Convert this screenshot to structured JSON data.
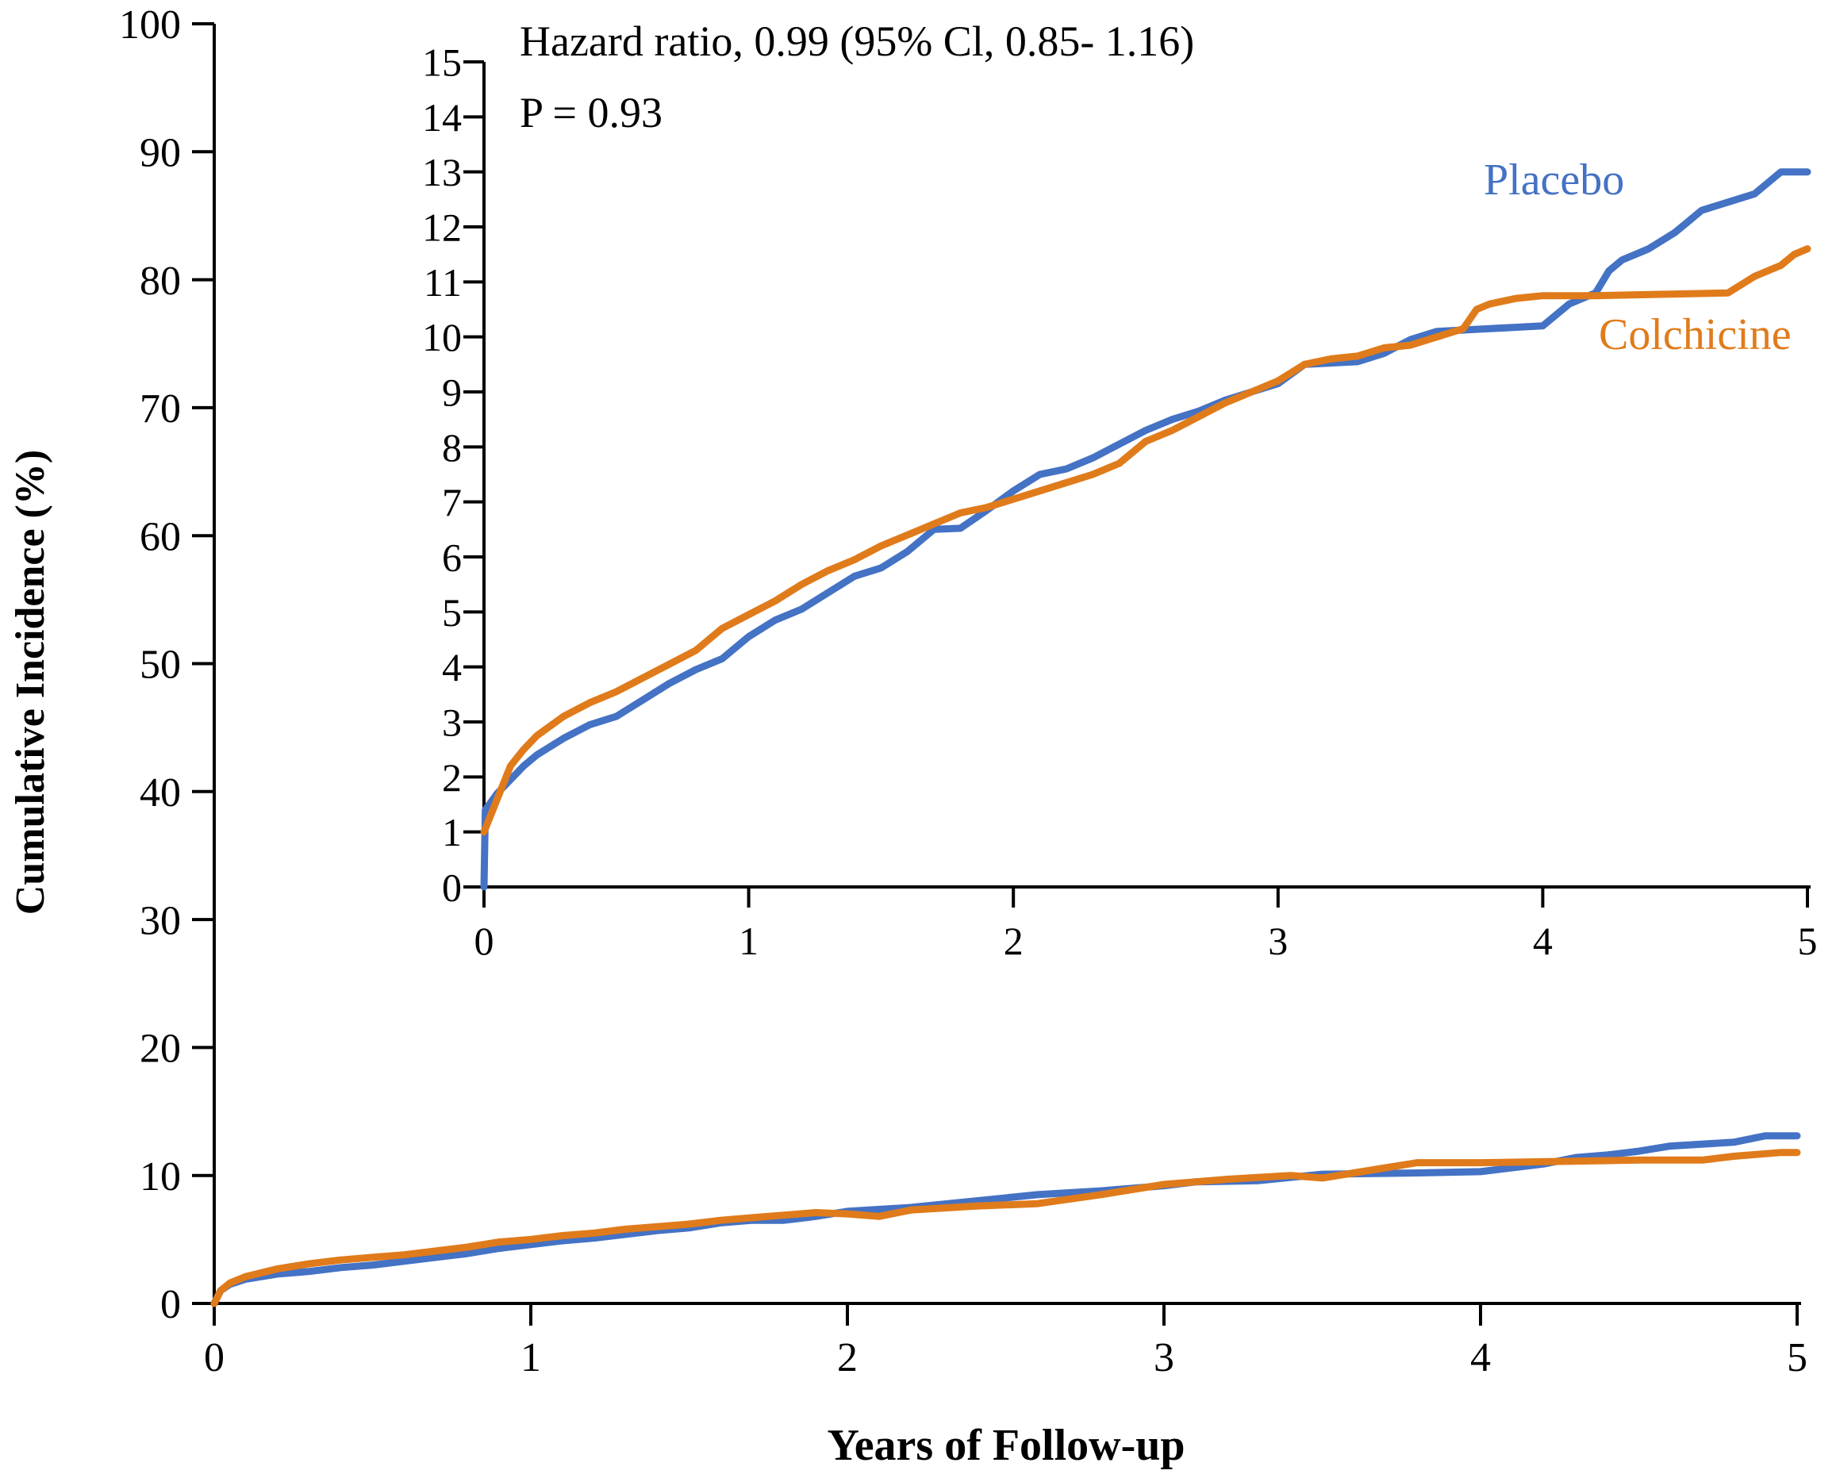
{
  "chart_data": [
    {
      "id": "main",
      "type": "line",
      "xlabel": "Years of Follow-up",
      "ylabel": "Cumulative Incidence (%)",
      "xlim": [
        0,
        5
      ],
      "ylim": [
        0,
        100
      ],
      "x_ticks": [
        "0",
        "1",
        "2",
        "3",
        "4",
        "5"
      ],
      "y_ticks": [
        "0",
        "10",
        "20",
        "30",
        "40",
        "50",
        "60",
        "70",
        "80",
        "90",
        "100"
      ],
      "grid": false,
      "series": [
        {
          "color": "#4472C4",
          "points": [
            [
              0,
              0
            ],
            [
              0.02,
              1.0
            ],
            [
              0.05,
              1.5
            ],
            [
              0.1,
              1.9
            ],
            [
              0.2,
              2.3
            ],
            [
              0.3,
              2.5
            ],
            [
              0.4,
              2.8
            ],
            [
              0.5,
              3.0
            ],
            [
              0.6,
              3.3
            ],
            [
              0.7,
              3.6
            ],
            [
              0.8,
              3.9
            ],
            [
              0.9,
              4.3
            ],
            [
              1.0,
              4.6
            ],
            [
              1.1,
              4.9
            ],
            [
              1.2,
              5.1
            ],
            [
              1.3,
              5.4
            ],
            [
              1.4,
              5.7
            ],
            [
              1.5,
              5.9
            ],
            [
              1.6,
              6.3
            ],
            [
              1.7,
              6.5
            ],
            [
              1.8,
              6.5
            ],
            [
              1.9,
              6.8
            ],
            [
              2.0,
              7.2
            ],
            [
              2.2,
              7.5
            ],
            [
              2.4,
              8.0
            ],
            [
              2.6,
              8.5
            ],
            [
              2.8,
              8.8
            ],
            [
              3.0,
              9.2
            ],
            [
              3.1,
              9.5
            ],
            [
              3.3,
              9.6
            ],
            [
              3.5,
              10.1
            ],
            [
              3.8,
              10.2
            ],
            [
              4.0,
              10.3
            ],
            [
              4.1,
              10.6
            ],
            [
              4.2,
              10.9
            ],
            [
              4.3,
              11.4
            ],
            [
              4.4,
              11.6
            ],
            [
              4.5,
              11.9
            ],
            [
              4.6,
              12.3
            ],
            [
              4.8,
              12.6
            ],
            [
              4.9,
              13.1
            ],
            [
              5.0,
              13.1
            ]
          ]
        },
        {
          "color": "#E07B1B",
          "points": [
            [
              0,
              0
            ],
            [
              0.02,
              1.0
            ],
            [
              0.05,
              1.6
            ],
            [
              0.1,
              2.1
            ],
            [
              0.2,
              2.7
            ],
            [
              0.3,
              3.1
            ],
            [
              0.4,
              3.4
            ],
            [
              0.5,
              3.6
            ],
            [
              0.6,
              3.8
            ],
            [
              0.7,
              4.1
            ],
            [
              0.8,
              4.4
            ],
            [
              0.9,
              4.8
            ],
            [
              1.0,
              5.0
            ],
            [
              1.1,
              5.3
            ],
            [
              1.2,
              5.5
            ],
            [
              1.3,
              5.8
            ],
            [
              1.4,
              6.0
            ],
            [
              1.5,
              6.2
            ],
            [
              1.6,
              6.5
            ],
            [
              1.7,
              6.7
            ],
            [
              1.8,
              6.9
            ],
            [
              1.9,
              7.1
            ],
            [
              2.0,
              7.0
            ],
            [
              2.1,
              6.8
            ],
            [
              2.2,
              7.3
            ],
            [
              2.4,
              7.6
            ],
            [
              2.6,
              7.8
            ],
            [
              2.8,
              8.5
            ],
            [
              3.0,
              9.3
            ],
            [
              3.2,
              9.7
            ],
            [
              3.4,
              10.0
            ],
            [
              3.5,
              9.8
            ],
            [
              3.6,
              10.2
            ],
            [
              3.7,
              10.6
            ],
            [
              3.8,
              11.0
            ],
            [
              4.0,
              11.0
            ],
            [
              4.5,
              11.2
            ],
            [
              4.7,
              11.2
            ],
            [
              4.8,
              11.5
            ],
            [
              4.95,
              11.8
            ],
            [
              5.0,
              11.8
            ]
          ]
        }
      ]
    },
    {
      "id": "inset",
      "type": "line",
      "xlim": [
        0,
        5
      ],
      "ylim": [
        0,
        15
      ],
      "x_ticks": [
        "0",
        "1",
        "2",
        "3",
        "4",
        "5"
      ],
      "y_ticks": [
        "0",
        "1",
        "2",
        "3",
        "4",
        "5",
        "6",
        "7",
        "8",
        "9",
        "10",
        "11",
        "12",
        "13",
        "14",
        "15"
      ],
      "grid": false,
      "annotations": [
        "Hazard ratio, 0.99 (95% Cl, 0.85- 1.16)",
        "P = 0.93"
      ],
      "series": [
        {
          "name": "Placebo",
          "color": "#4472C4",
          "points": [
            [
              0,
              0
            ],
            [
              0.005,
              1.4
            ],
            [
              0.05,
              1.7
            ],
            [
              0.1,
              1.95
            ],
            [
              0.15,
              2.2
            ],
            [
              0.2,
              2.4
            ],
            [
              0.3,
              2.7
            ],
            [
              0.4,
              2.95
            ],
            [
              0.5,
              3.1
            ],
            [
              0.6,
              3.4
            ],
            [
              0.7,
              3.7
            ],
            [
              0.8,
              3.95
            ],
            [
              0.9,
              4.15
            ],
            [
              1.0,
              4.55
            ],
            [
              1.1,
              4.85
            ],
            [
              1.2,
              5.05
            ],
            [
              1.3,
              5.35
            ],
            [
              1.4,
              5.65
            ],
            [
              1.5,
              5.8
            ],
            [
              1.6,
              6.1
            ],
            [
              1.7,
              6.5
            ],
            [
              1.8,
              6.52
            ],
            [
              1.9,
              6.85
            ],
            [
              2.0,
              7.2
            ],
            [
              2.1,
              7.5
            ],
            [
              2.2,
              7.6
            ],
            [
              2.3,
              7.8
            ],
            [
              2.4,
              8.05
            ],
            [
              2.5,
              8.3
            ],
            [
              2.6,
              8.5
            ],
            [
              2.7,
              8.65
            ],
            [
              2.8,
              8.85
            ],
            [
              2.9,
              9.0
            ],
            [
              3.0,
              9.15
            ],
            [
              3.1,
              9.5
            ],
            [
              3.3,
              9.55
            ],
            [
              3.4,
              9.7
            ],
            [
              3.5,
              9.95
            ],
            [
              3.6,
              10.1
            ],
            [
              3.8,
              10.15
            ],
            [
              4.0,
              10.2
            ],
            [
              4.1,
              10.6
            ],
            [
              4.2,
              10.8
            ],
            [
              4.25,
              11.2
            ],
            [
              4.3,
              11.4
            ],
            [
              4.4,
              11.6
            ],
            [
              4.5,
              11.9
            ],
            [
              4.55,
              12.1
            ],
            [
              4.6,
              12.3
            ],
            [
              4.8,
              12.6
            ],
            [
              4.9,
              13.0
            ],
            [
              5.0,
              13.0
            ]
          ]
        },
        {
          "name": "Colchicine",
          "color": "#E07B1B",
          "points": [
            [
              0,
              1.0
            ],
            [
              0.05,
              1.6
            ],
            [
              0.1,
              2.2
            ],
            [
              0.15,
              2.5
            ],
            [
              0.2,
              2.75
            ],
            [
              0.3,
              3.1
            ],
            [
              0.4,
              3.35
            ],
            [
              0.5,
              3.55
            ],
            [
              0.6,
              3.8
            ],
            [
              0.7,
              4.05
            ],
            [
              0.8,
              4.3
            ],
            [
              0.9,
              4.7
            ],
            [
              1.0,
              4.95
            ],
            [
              1.1,
              5.2
            ],
            [
              1.2,
              5.5
            ],
            [
              1.3,
              5.75
            ],
            [
              1.4,
              5.95
            ],
            [
              1.5,
              6.2
            ],
            [
              1.6,
              6.4
            ],
            [
              1.7,
              6.6
            ],
            [
              1.8,
              6.8
            ],
            [
              1.9,
              6.9
            ],
            [
              2.0,
              7.05
            ],
            [
              2.1,
              7.2
            ],
            [
              2.2,
              7.35
            ],
            [
              2.3,
              7.5
            ],
            [
              2.4,
              7.7
            ],
            [
              2.5,
              8.1
            ],
            [
              2.6,
              8.3
            ],
            [
              2.7,
              8.55
            ],
            [
              2.8,
              8.8
            ],
            [
              2.9,
              9.0
            ],
            [
              3.0,
              9.2
            ],
            [
              3.1,
              9.5
            ],
            [
              3.2,
              9.6
            ],
            [
              3.3,
              9.65
            ],
            [
              3.4,
              9.8
            ],
            [
              3.5,
              9.85
            ],
            [
              3.6,
              10.0
            ],
            [
              3.7,
              10.15
            ],
            [
              3.75,
              10.5
            ],
            [
              3.8,
              10.6
            ],
            [
              3.9,
              10.7
            ],
            [
              4.0,
              10.75
            ],
            [
              4.2,
              10.75
            ],
            [
              4.7,
              10.8
            ],
            [
              4.8,
              11.1
            ],
            [
              4.9,
              11.3
            ],
            [
              4.95,
              11.5
            ],
            [
              5.0,
              11.6
            ]
          ]
        }
      ]
    }
  ]
}
